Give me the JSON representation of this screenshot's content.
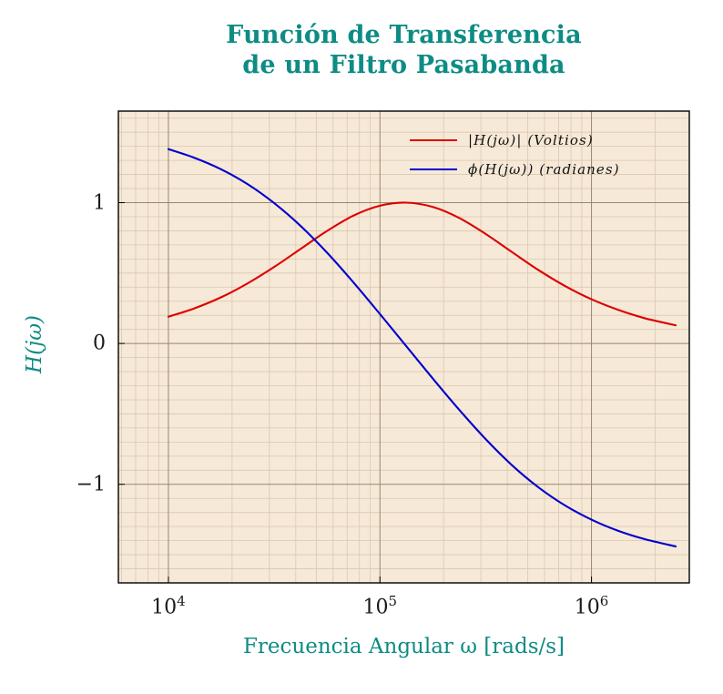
{
  "title": {
    "line1": "Función de Transferencia",
    "line2": "de un Filtro Pasabanda"
  },
  "axes": {
    "xlabel": "Frecuencia Angular ω [rads/s]",
    "ylabel": "H(jω)"
  },
  "colors": {
    "teal": "#0d8c84",
    "red": "#dc0000",
    "blue": "#0000cc",
    "plot_bg": "#f7e9d7",
    "grid_minor": "#d9c8b2",
    "grid_major": "#97876f",
    "frame": "#000000",
    "tick_text": "#1a1a1a"
  },
  "chart_data": {
    "type": "line",
    "title": "Función de Transferencia de un Filtro Pasabanda",
    "xlabel": "Frecuencia Angular ω [rads/s]",
    "ylabel": "H(jω)",
    "x_scale": "log",
    "xlim": [
      5800,
      2900000
    ],
    "ylim": [
      -1.7,
      1.65
    ],
    "y_minor_step": 0.1,
    "grid": "major+minor",
    "legend_position": "top-right",
    "x_ticks": [
      {
        "value": 10000,
        "base": "10",
        "exp": "4"
      },
      {
        "value": 100000,
        "base": "10",
        "exp": "5"
      },
      {
        "value": 1000000,
        "base": "10",
        "exp": "6"
      }
    ],
    "y_ticks": [
      {
        "value": 1,
        "label": "1"
      },
      {
        "value": 0,
        "label": "0"
      },
      {
        "value": -1,
        "label": "−1"
      }
    ],
    "x": [
      10000,
      13300,
      17800,
      23700,
      31600,
      42200,
      56200,
      75000,
      100000,
      133000,
      178000,
      237000,
      316000,
      422000,
      562000,
      750000,
      1000000,
      1330000,
      1780000,
      2500000
    ],
    "series": [
      {
        "name": "|H(jω)| (Voltios)",
        "color": "#dc0000",
        "values": [
          0.19,
          0.25,
          0.329,
          0.427,
          0.543,
          0.672,
          0.799,
          0.908,
          0.978,
          1.0,
          0.969,
          0.891,
          0.778,
          0.648,
          0.521,
          0.408,
          0.314,
          0.24,
          0.18,
          0.129
        ]
      },
      {
        "name": "ϕ(H(jω)) (radianes)",
        "color": "#0000cc",
        "values": [
          1.38,
          1.318,
          1.236,
          1.131,
          0.997,
          0.834,
          0.645,
          0.433,
          0.209,
          -0.018,
          -0.25,
          -0.471,
          -0.679,
          -0.866,
          -1.022,
          -1.15,
          -1.251,
          -1.329,
          -1.389,
          -1.441
        ]
      }
    ]
  }
}
